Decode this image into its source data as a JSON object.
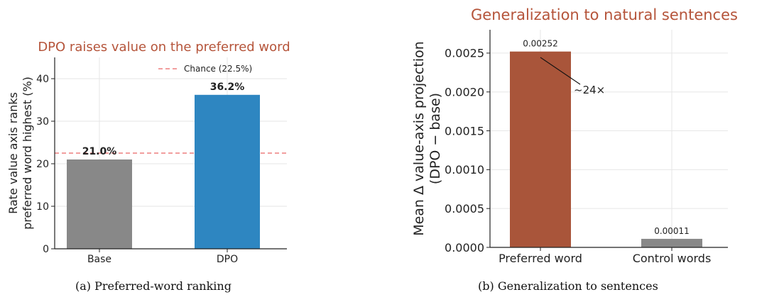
{
  "chart_data": [
    {
      "type": "bar",
      "title": "DPO raises value on the preferred word",
      "ylabel": "Rate value axis ranks\npreferred word highest (%)",
      "xlabel": "",
      "categories": [
        "Base",
        "DPO"
      ],
      "values": [
        21.0,
        36.2
      ],
      "value_labels": [
        "21.0%",
        "36.2%"
      ],
      "bar_colors": [
        "#888888",
        "#2e86c1"
      ],
      "ylim": [
        0,
        45
      ],
      "yticks": [
        "0",
        "10",
        "20",
        "30",
        "40"
      ],
      "reference_line": {
        "value": 22.5,
        "label": "Chance (22.5%)",
        "color": "#ee7f7f"
      },
      "legend_position": "top-right",
      "grid": true,
      "caption": "(a) Preferred-word ranking"
    },
    {
      "type": "bar",
      "title": "Generalization to natural sentences",
      "ylabel": "Mean Δ value-axis projection\n(DPO − base)",
      "xlabel": "",
      "categories": [
        "Preferred word",
        "Control words"
      ],
      "values": [
        0.00252,
        0.00011
      ],
      "value_labels": [
        "0.00252",
        "0.00011"
      ],
      "bar_colors": [
        "#a9553a",
        "#888888"
      ],
      "ylim": [
        0,
        0.0028
      ],
      "yticks": [
        "0.0000",
        "0.0005",
        "0.0010",
        "0.0015",
        "0.0020",
        "0.0025"
      ],
      "annotation": "~24×",
      "grid": true,
      "caption": "(b) Generalization to sentences"
    }
  ]
}
